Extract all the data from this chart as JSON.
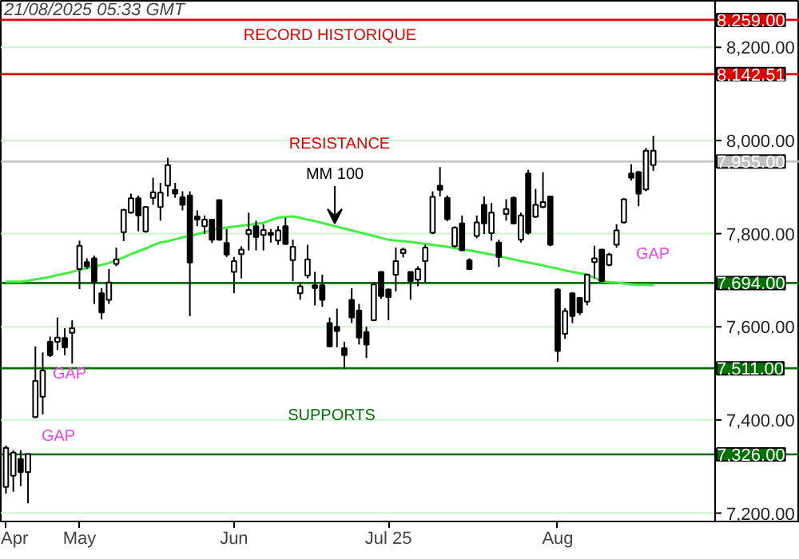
{
  "chart_data": {
    "type": "candlestick",
    "title": "21/08/2025 05:33 GMT",
    "categories": [
      "Apr",
      null,
      null,
      null,
      null,
      null,
      null,
      null,
      null,
      null,
      "May",
      null,
      null,
      null,
      null,
      null,
      null,
      null,
      null,
      null,
      null,
      null,
      null,
      null,
      null,
      null,
      null,
      null,
      null,
      null,
      null,
      "Jun",
      null,
      null,
      null,
      null,
      null,
      null,
      null,
      null,
      null,
      null,
      null,
      null,
      null,
      null,
      null,
      null,
      null,
      null,
      null,
      null,
      "Jul 25",
      null,
      null,
      null,
      null,
      null,
      null,
      null,
      null,
      null,
      null,
      null,
      null,
      null,
      null,
      null,
      null,
      null,
      null,
      null,
      null,
      null,
      null,
      "Aug",
      null,
      null,
      null,
      null,
      null,
      null,
      null,
      null,
      null,
      null,
      null,
      null,
      null,
      null,
      null,
      null,
      null,
      null,
      null,
      null
    ],
    "ohlc": [
      [
        7256,
        7345,
        7242,
        7340
      ],
      [
        7280,
        7335,
        7246,
        7330
      ],
      [
        7316,
        7335,
        7258,
        7288
      ],
      [
        7288,
        7327,
        7221,
        7327
      ],
      [
        7406,
        7558,
        7404,
        7484
      ],
      [
        7450,
        7545,
        7412,
        7506
      ],
      [
        7568,
        7579,
        7535,
        7539
      ],
      [
        7568,
        7620,
        7550,
        7577
      ],
      [
        7576,
        7597,
        7539,
        7556
      ],
      [
        7587,
        7614,
        7521,
        7597
      ],
      [
        7724,
        7785,
        7681,
        7774
      ],
      [
        7739,
        7747,
        7724,
        7730
      ],
      [
        7747,
        7753,
        7649,
        7695
      ],
      [
        7672,
        7683,
        7616,
        7631
      ],
      [
        7658,
        7724,
        7649,
        7695
      ],
      [
        7735,
        7770,
        7730,
        7745
      ],
      [
        7803,
        7853,
        7784,
        7851
      ],
      [
        7845,
        7886,
        7843,
        7876
      ],
      [
        7876,
        7882,
        7805,
        7839
      ],
      [
        7805,
        7859,
        7802,
        7857
      ],
      [
        7877,
        7920,
        7862,
        7889
      ],
      [
        7857,
        7909,
        7828,
        7888
      ],
      [
        7903,
        7963,
        7880,
        7947
      ],
      [
        7894,
        7909,
        7877,
        7886
      ],
      [
        7878,
        7891,
        7850,
        7862
      ],
      [
        7882,
        7891,
        7623,
        7738
      ],
      [
        7837,
        7850,
        7816,
        7830
      ],
      [
        7816,
        7839,
        7799,
        7830
      ],
      [
        7830,
        7830,
        7780,
        7787
      ],
      [
        7872,
        7873,
        7785,
        7787
      ],
      [
        7780,
        7810,
        7750,
        7755
      ],
      [
        7718,
        7750,
        7672,
        7741
      ],
      [
        7756,
        7773,
        7704,
        7766
      ],
      [
        7799,
        7845,
        7764,
        7808
      ],
      [
        7816,
        7828,
        7764,
        7793
      ],
      [
        7797,
        7820,
        7764,
        7808
      ],
      [
        7802,
        7810,
        7781,
        7797
      ],
      [
        7785,
        7816,
        7776,
        7807
      ],
      [
        7816,
        7834,
        7776,
        7778
      ],
      [
        7743,
        7787,
        7698,
        7772
      ],
      [
        7672,
        7695,
        7658,
        7687
      ],
      [
        7710,
        7776,
        7704,
        7745
      ],
      [
        7689,
        7718,
        7646,
        7683
      ],
      [
        7689,
        7712,
        7643,
        7658
      ],
      [
        7608,
        7620,
        7556,
        7558
      ],
      [
        7600,
        7639,
        7556,
        7591
      ],
      [
        7554,
        7568,
        7510,
        7539
      ],
      [
        7658,
        7683,
        7608,
        7620
      ],
      [
        7635,
        7649,
        7562,
        7577
      ],
      [
        7589,
        7600,
        7533,
        7562
      ],
      [
        7614,
        7695,
        7612,
        7691
      ],
      [
        7718,
        7718,
        7660,
        7666
      ],
      [
        7680,
        7682,
        7614,
        7664
      ],
      [
        7712,
        7770,
        7676,
        7741
      ],
      [
        7758,
        7770,
        7749,
        7766
      ],
      [
        7718,
        7718,
        7658,
        7698
      ],
      [
        7701,
        7730,
        7687,
        7724
      ],
      [
        7741,
        7776,
        7695,
        7770
      ],
      [
        7802,
        7891,
        7799,
        7879
      ],
      [
        7903,
        7943,
        7880,
        7894
      ],
      [
        7877,
        7882,
        7827,
        7831
      ],
      [
        7773,
        7816,
        7770,
        7813
      ],
      [
        7822,
        7839,
        7764,
        7764
      ],
      [
        7743,
        7747,
        7724,
        7724
      ],
      [
        7795,
        7839,
        7790,
        7824
      ],
      [
        7862,
        7880,
        7799,
        7822
      ],
      [
        7801,
        7866,
        7785,
        7845
      ],
      [
        7781,
        7787,
        7729,
        7750
      ],
      [
        7842,
        7874,
        7828,
        7853
      ],
      [
        7877,
        7880,
        7820,
        7822
      ],
      [
        7787,
        7845,
        7781,
        7839
      ],
      [
        7929,
        7937,
        7798,
        7802
      ],
      [
        7836,
        7896,
        7834,
        7862
      ],
      [
        7857,
        7932,
        7855,
        7868
      ],
      [
        7880,
        7880,
        7773,
        7776
      ],
      [
        7680,
        7683,
        7525,
        7548
      ],
      [
        7585,
        7640,
        7574,
        7634
      ],
      [
        7672,
        7674,
        7608,
        7623
      ],
      [
        7662,
        7664,
        7625,
        7631
      ],
      [
        7654,
        7714,
        7646,
        7712
      ],
      [
        7739,
        7774,
        7704,
        7747
      ],
      [
        7766,
        7766,
        7697,
        7698
      ],
      [
        7733,
        7759,
        7730,
        7755
      ],
      [
        7776,
        7820,
        7770,
        7807
      ],
      [
        7824,
        7876,
        7822,
        7874
      ],
      [
        7929,
        7949,
        7914,
        7920
      ],
      [
        7932,
        7935,
        7859,
        7886
      ],
      [
        7895,
        7984,
        7891,
        7978
      ],
      [
        7947,
        8010,
        7935,
        7978
      ],
      null,
      null,
      null,
      null,
      null,
      null,
      null
    ],
    "color": "#000000",
    "series": [
      {
        "type": "line",
        "color": "#44ee44",
        "values": [
          7697,
          7697,
          7697,
          7699,
          7702,
          7704,
          7707,
          7711,
          7714,
          7718,
          7722,
          7726,
          7729,
          7733,
          7737,
          7743,
          7749,
          7756,
          7762,
          7768,
          7775,
          7781,
          7784,
          7788,
          7792,
          7795,
          7799,
          7803,
          7807,
          7811,
          7813,
          7815,
          7817,
          7819,
          7821,
          7823,
          7829,
          7834,
          7836,
          7837,
          7834,
          7830,
          7827,
          7823,
          7819,
          7815,
          7811,
          7807,
          7803,
          7799,
          7795,
          7791,
          7787,
          7785,
          7784,
          7782,
          7780,
          7778,
          7776,
          7774,
          7772,
          7769,
          7766,
          7764,
          7761,
          7758,
          7755,
          7752,
          7748,
          7745,
          7741,
          7738,
          7735,
          7732,
          7728,
          7725,
          7721,
          7718,
          7715,
          7712,
          7705,
          7698,
          7696,
          7695,
          7693,
          7691,
          7690,
          7690,
          7689,
          null,
          null,
          null,
          null,
          null,
          null,
          null
        ]
      }
    ],
    "ylim": [
      7182,
      8300
    ],
    "yticks": [
      {
        "value": 7200,
        "label": "7,200.00"
      },
      {
        "value": 7400,
        "label": "7,400.00"
      },
      {
        "value": 7600,
        "label": "7,600.00"
      },
      {
        "value": 7800,
        "label": "7,800.00"
      },
      {
        "value": 8000,
        "label": "8,000.00"
      },
      {
        "value": 8200,
        "label": "8,200.00"
      }
    ],
    "grid": "y",
    "ref_lines": [
      {
        "axis": "y",
        "value": 8259,
        "label": "8,259.00",
        "color": "#e00000"
      },
      {
        "axis": "y",
        "value": 8142.51,
        "label": "8,142.51",
        "color": "#e00000"
      },
      {
        "axis": "y",
        "value": 7955,
        "label": "7,955.00",
        "color": "#c0c0c0"
      },
      {
        "axis": "y",
        "value": 7694,
        "label": "7,694.00",
        "color": "#007000"
      },
      {
        "axis": "y",
        "value": 7511,
        "label": "7,511.00",
        "color": "#007000"
      },
      {
        "axis": "y",
        "value": 7326,
        "label": "7,326.00",
        "color": "#007000"
      }
    ],
    "annotations": [
      "RECORD HISTORIQUE",
      "RESISTANCE",
      "SUPPORTS",
      "GAP",
      "GAP",
      "GAP",
      {
        "text": "MM 100",
        "y": 7822
      }
    ]
  }
}
